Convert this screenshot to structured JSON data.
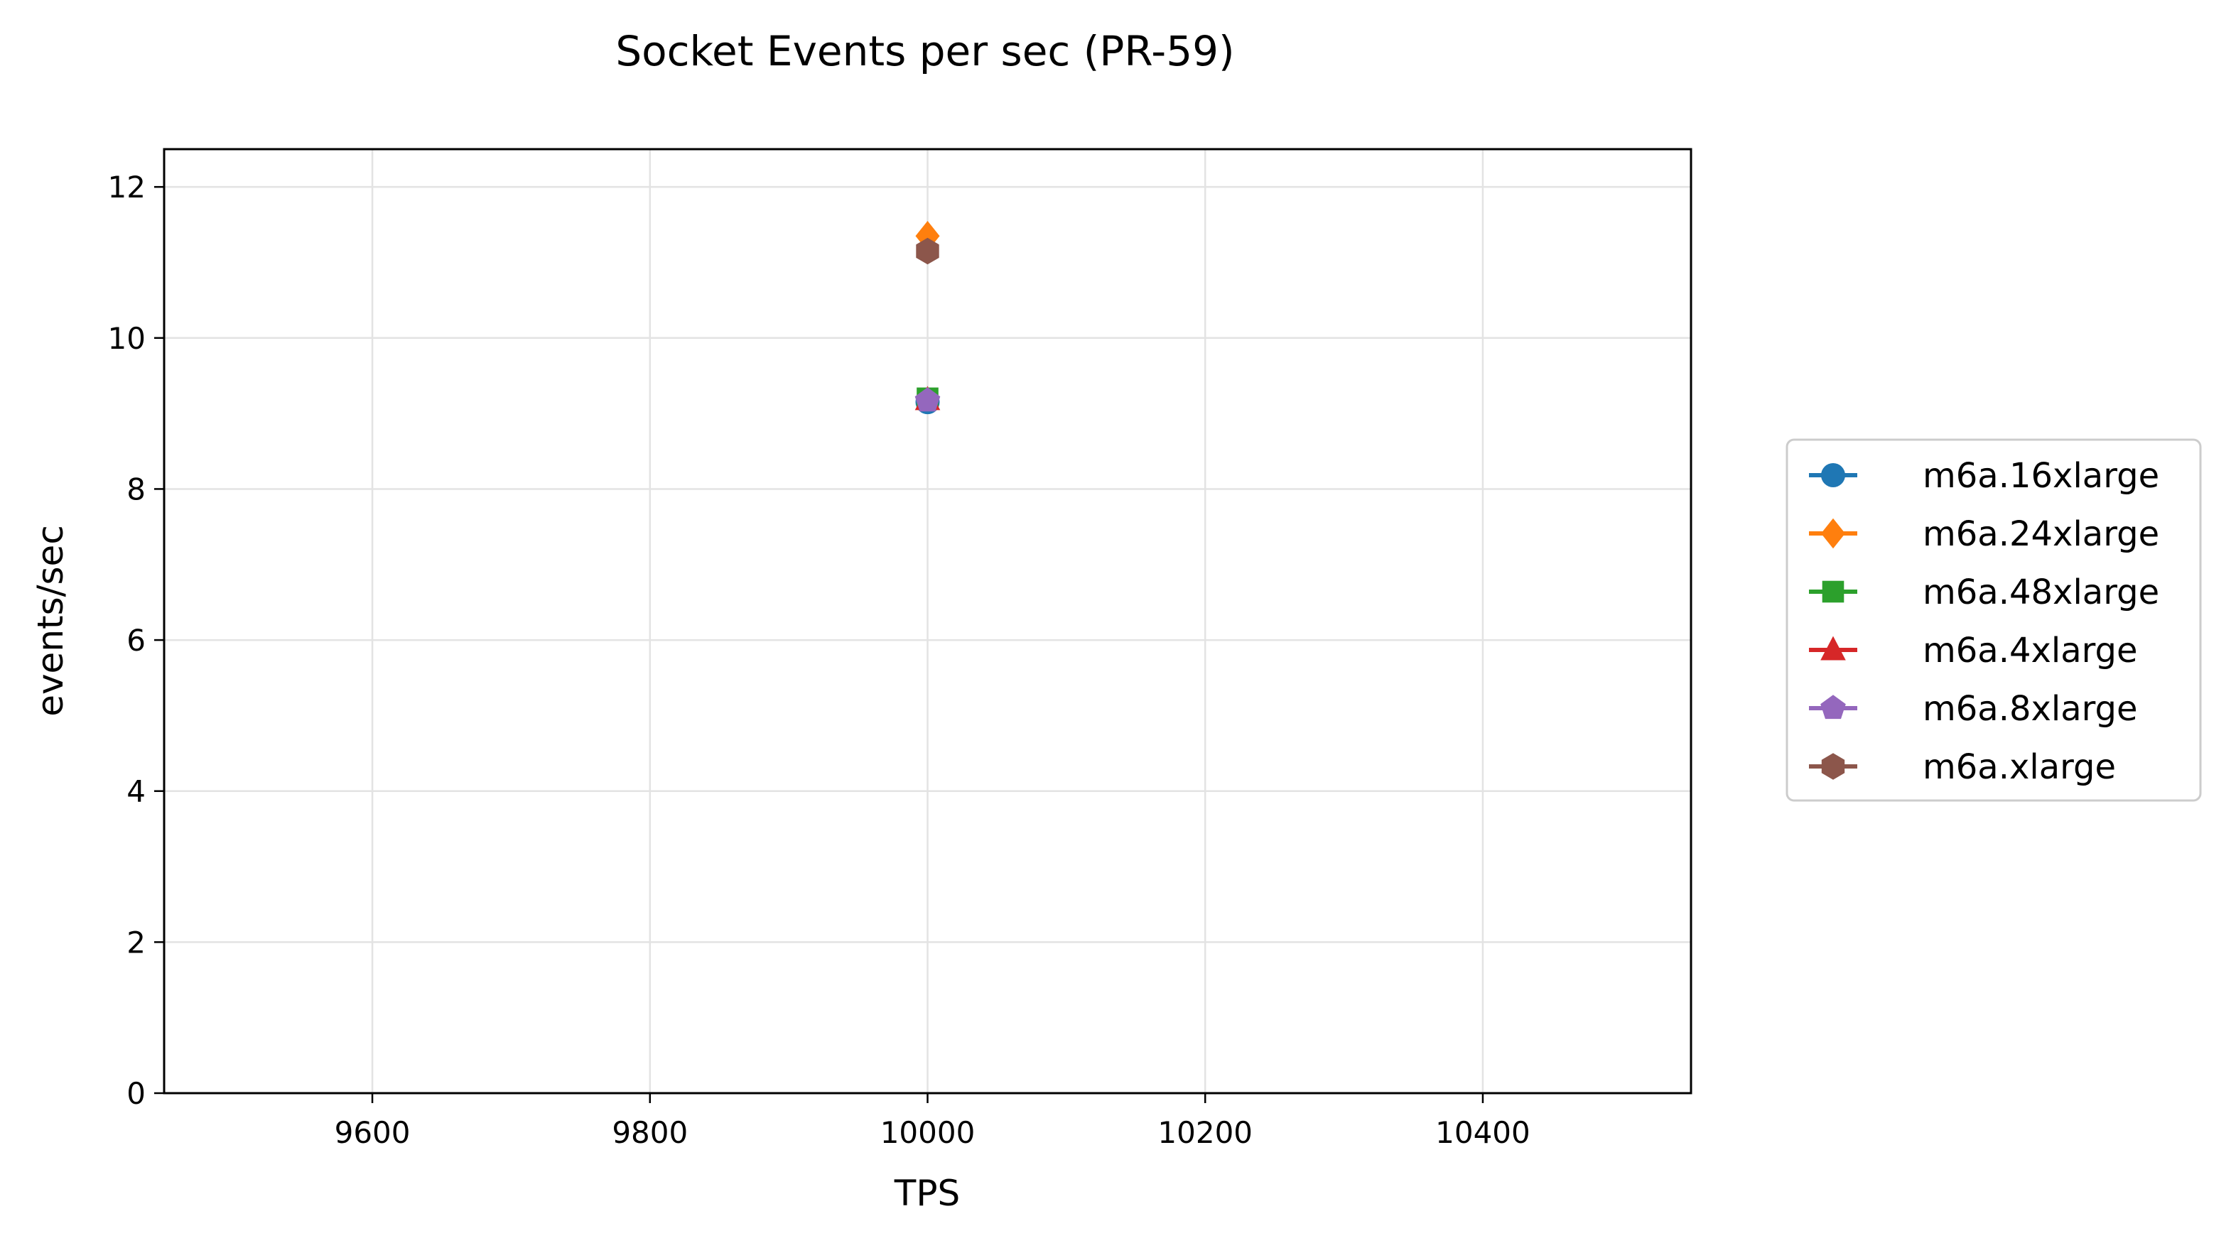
{
  "chart_data": {
    "type": "scatter",
    "title": "Socket Events per sec (PR-59)",
    "xlabel": "TPS",
    "ylabel": "events/sec",
    "xlim": [
      9450,
      10550
    ],
    "ylim": [
      0,
      12.5
    ],
    "x_ticks": [
      9600,
      9800,
      10000,
      10200,
      10400
    ],
    "y_ticks": [
      0,
      2,
      4,
      6,
      8,
      10,
      12
    ],
    "grid": true,
    "legend_position": "right-outside",
    "series": [
      {
        "name": "m6a.16xlarge",
        "color": "#1f77b4",
        "marker": "circle",
        "points": [
          {
            "x": 10000,
            "y": 9.15
          }
        ]
      },
      {
        "name": "m6a.24xlarge",
        "color": "#ff7f0e",
        "marker": "diamond",
        "points": [
          {
            "x": 10000,
            "y": 11.35
          }
        ]
      },
      {
        "name": "m6a.48xlarge",
        "color": "#2ca02c",
        "marker": "square",
        "points": [
          {
            "x": 10000,
            "y": 9.2
          }
        ]
      },
      {
        "name": "m6a.4xlarge",
        "color": "#d62728",
        "marker": "triangle",
        "points": [
          {
            "x": 10000,
            "y": 9.18
          }
        ]
      },
      {
        "name": "m6a.8xlarge",
        "color": "#9467bd",
        "marker": "pentagon",
        "points": [
          {
            "x": 10000,
            "y": 9.17
          }
        ]
      },
      {
        "name": "m6a.xlarge",
        "color": "#8c564b",
        "marker": "hexagon",
        "points": [
          {
            "x": 10000,
            "y": 11.15
          }
        ]
      }
    ]
  }
}
